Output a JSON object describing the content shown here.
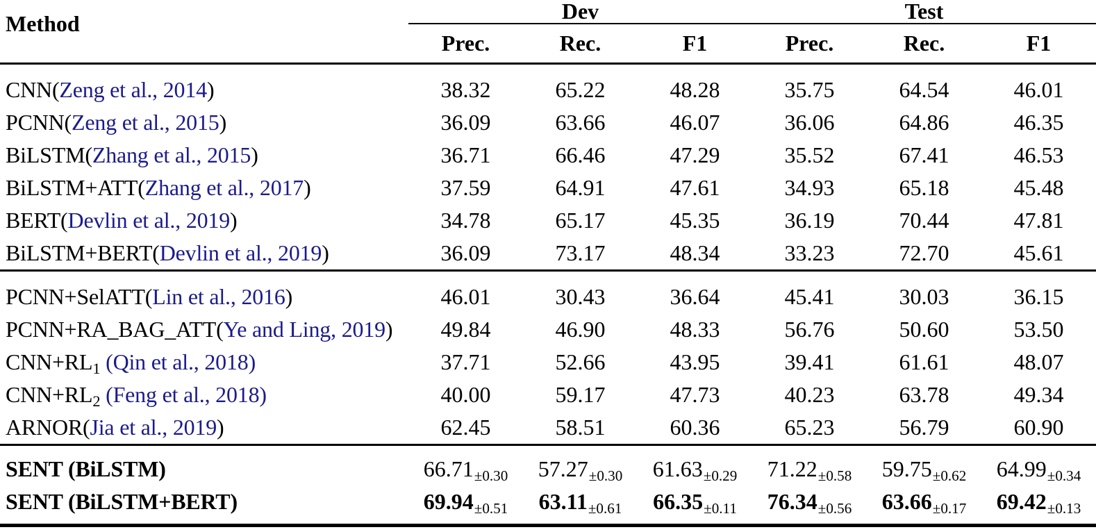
{
  "table": {
    "header": {
      "method": "Method",
      "dev": "Dev",
      "test": "Test",
      "subcolumns": [
        "Prec.",
        "Rec.",
        "F1",
        "Prec.",
        "Rec.",
        "F1"
      ]
    },
    "colors": {
      "citation": "#1b1b8c",
      "rule": "#000000",
      "text": "#000000"
    },
    "groups": [
      {
        "rows": [
          {
            "method": {
              "pre": "CNN(",
              "cite": "Zeng et al., 2014",
              "post": ")"
            },
            "cells": [
              "38.32",
              "65.22",
              "48.28",
              "35.75",
              "64.54",
              "46.01"
            ]
          },
          {
            "method": {
              "pre": "PCNN(",
              "cite": "Zeng et al., 2015",
              "post": ")"
            },
            "cells": [
              "36.09",
              "63.66",
              "46.07",
              "36.06",
              "64.86",
              "46.35"
            ]
          },
          {
            "method": {
              "pre": "BiLSTM(",
              "cite": "Zhang et al., 2015",
              "post": ")"
            },
            "cells": [
              "36.71",
              "66.46",
              "47.29",
              "35.52",
              "67.41",
              "46.53"
            ]
          },
          {
            "method": {
              "pre": "BiLSTM+ATT(",
              "cite": "Zhang et al., 2017",
              "post": ")"
            },
            "cells": [
              "37.59",
              "64.91",
              "47.61",
              "34.93",
              "65.18",
              "45.48"
            ]
          },
          {
            "method": {
              "pre": "BERT(",
              "cite": "Devlin et al., 2019",
              "post": ")"
            },
            "cells": [
              "34.78",
              "65.17",
              "45.35",
              "36.19",
              "70.44",
              "47.81"
            ]
          },
          {
            "method": {
              "pre": "BiLSTM+BERT(",
              "cite": "Devlin et al., 2019",
              "post": ")"
            },
            "cells": [
              "36.09",
              "73.17",
              "48.34",
              "33.23",
              "72.70",
              "45.61"
            ]
          }
        ]
      },
      {
        "rows": [
          {
            "method": {
              "pre": "PCNN+SelATT(",
              "cite": "Lin et al., 2016",
              "post": ")"
            },
            "cells": [
              "46.01",
              "30.43",
              "36.64",
              "45.41",
              "30.03",
              "36.15"
            ]
          },
          {
            "method": {
              "pre": "PCNN+RA_BAG_ATT(",
              "cite": "Ye and Ling, 2019",
              "post": ")"
            },
            "cells": [
              "49.84",
              "46.90",
              "48.33",
              "56.76",
              "50.60",
              "53.50"
            ]
          },
          {
            "method": {
              "pre": "CNN+RL",
              "sub": "1",
              "mid": " ",
              "cite": "(Qin et al., 2018)",
              "post": ""
            },
            "cells": [
              "37.71",
              "52.66",
              "43.95",
              "39.41",
              "61.61",
              "48.07"
            ]
          },
          {
            "method": {
              "pre": "CNN+RL",
              "sub": "2",
              "mid": " ",
              "cite": "(Feng et al., 2018)",
              "post": ""
            },
            "cells": [
              "40.00",
              "59.17",
              "47.73",
              "40.23",
              "63.78",
              "49.34"
            ]
          },
          {
            "method": {
              "pre": "ARNOR(",
              "cite": "Jia et al., 2019",
              "post": ")"
            },
            "cells": [
              "62.45",
              "58.51",
              "60.36",
              "65.23",
              "56.79",
              "60.90"
            ]
          }
        ]
      },
      {
        "rows": [
          {
            "method": {
              "pre": "SENT (BiLSTM)"
            },
            "cells": [
              {
                "v": "66.71",
                "s": "±0.30"
              },
              {
                "v": "57.27",
                "s": "±0.30"
              },
              {
                "v": "61.63",
                "s": "±0.29"
              },
              {
                "v": "71.22",
                "s": "±0.58"
              },
              {
                "v": "59.75",
                "s": "±0.62"
              },
              {
                "v": "64.99",
                "s": "±0.34"
              }
            ]
          },
          {
            "method": {
              "pre": "SENT (BiLSTM+BERT)"
            },
            "cells": [
              {
                "v": "69.94",
                "s": "±0.51"
              },
              {
                "v": "63.11",
                "s": "±0.61"
              },
              {
                "v": "66.35",
                "s": "±0.11"
              },
              {
                "v": "76.34",
                "s": "±0.56"
              },
              {
                "v": "63.66",
                "s": "±0.17"
              },
              {
                "v": "69.42",
                "s": "±0.13"
              }
            ]
          }
        ]
      }
    ]
  }
}
